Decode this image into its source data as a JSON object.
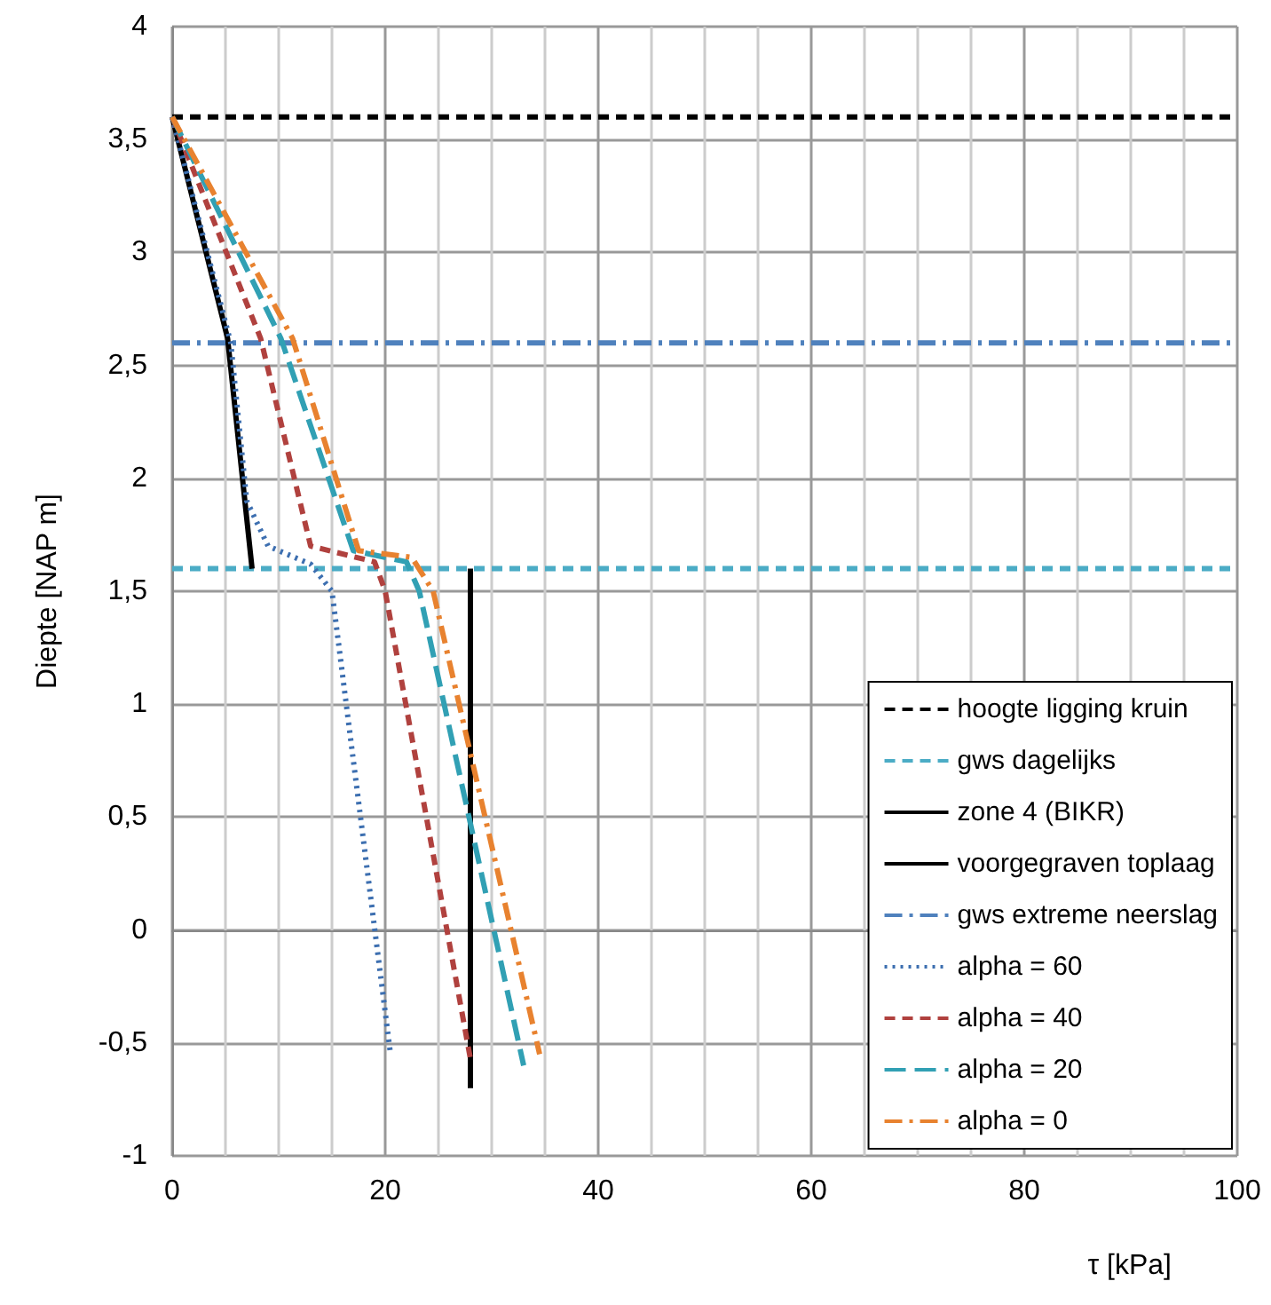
{
  "chart_data": {
    "type": "line",
    "xlabel": "τ [kPa]",
    "ylabel": "Diepte [NAP m]",
    "xlim": [
      0,
      100
    ],
    "xticks": [
      0,
      20,
      40,
      60,
      80,
      100
    ],
    "ylim": [
      -1,
      4
    ],
    "yticks": [
      -1,
      {
        "value": -0.5,
        "label": "-0,5"
      },
      0,
      {
        "value": 0.5,
        "label": "0,5"
      },
      1,
      {
        "value": 1.5,
        "label": "1,5"
      },
      2,
      {
        "value": 2.5,
        "label": "2,5"
      },
      3,
      {
        "value": 3.5,
        "label": "3,5"
      },
      4
    ],
    "grid": true,
    "legend": "bottom right",
    "marker": "none",
    "series": [
      {
        "name": "hoogte ligging kruin",
        "color": "#000000",
        "line_style": "dashed",
        "x": [
          0,
          100
        ],
        "values": [
          3.6,
          3.6
        ]
      },
      {
        "name": "gws dagelijks",
        "color": "#4bacc6",
        "line_style": "dashed",
        "x": [
          0,
          100
        ],
        "values": [
          1.6,
          1.6
        ]
      },
      {
        "name": "zone 4 (BIKR)",
        "color": "#000000",
        "line_style": "solid",
        "x": [
          0,
          5.2,
          7.5
        ],
        "values": [
          3.6,
          2.62,
          1.6
        ]
      },
      {
        "name": "voorgegraven toplaag",
        "color": "#000000",
        "line_style": "solid",
        "x": [
          28,
          28
        ],
        "values": [
          1.6,
          -0.7
        ]
      },
      {
        "name": "gws extreme neerslag",
        "color": "#4f81bd",
        "line_style": "dashdot",
        "x": [
          0,
          100
        ],
        "values": [
          2.6,
          2.6
        ]
      },
      {
        "name": "alpha = 60",
        "color": "#3d6fb0",
        "line_style": "dotted",
        "x": [
          0,
          5.5,
          7,
          9,
          13,
          15,
          20.5
        ],
        "values": [
          3.6,
          2.6,
          1.9,
          1.7,
          1.62,
          1.5,
          -0.55
        ]
      },
      {
        "name": "alpha = 40",
        "color": "#b0413e",
        "line_style": "dashed",
        "x": [
          0,
          8.3,
          13,
          19,
          20,
          28
        ],
        "values": [
          3.6,
          2.62,
          1.7,
          1.63,
          1.5,
          -0.57
        ]
      },
      {
        "name": "alpha = 20",
        "color": "#31a0b4",
        "line_style": "longdash",
        "x": [
          0,
          10.2,
          17,
          22,
          23.2,
          33
        ],
        "values": [
          3.6,
          2.62,
          1.68,
          1.63,
          1.5,
          -0.6
        ]
      },
      {
        "name": "alpha = 0",
        "color": "#e8822f",
        "line_style": "dashdot",
        "x": [
          0,
          11.3,
          17.5,
          22.5,
          24.5,
          34.5
        ],
        "values": [
          3.6,
          2.62,
          1.68,
          1.65,
          1.5,
          -0.55
        ]
      }
    ]
  }
}
